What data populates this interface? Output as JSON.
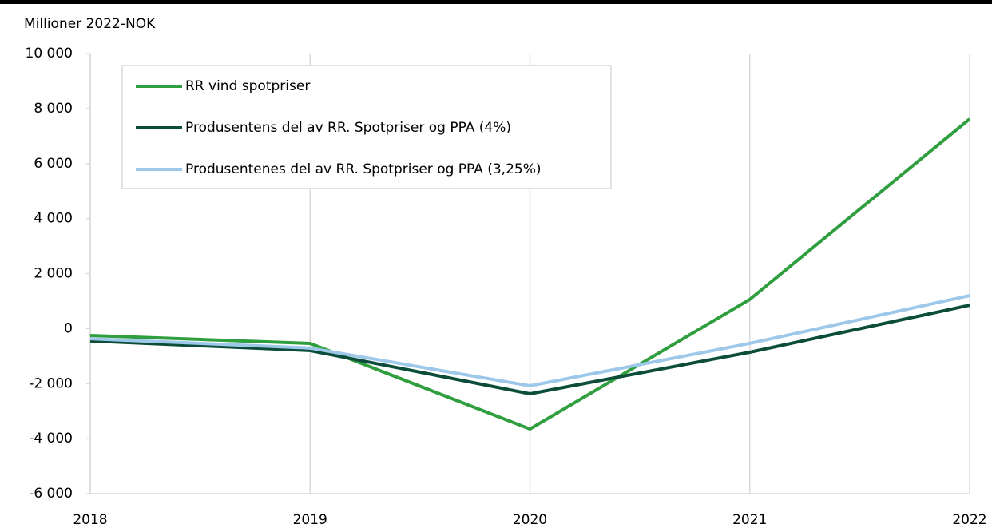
{
  "chart_data": {
    "type": "line",
    "y_axis_label": "Millioner 2022-NOK",
    "x": [
      2018,
      2019,
      2020,
      2021,
      2022
    ],
    "xlim": [
      2018,
      2022
    ],
    "xticks": [
      2018,
      2019,
      2020,
      2021,
      2022
    ],
    "ylim": [
      -6000,
      10000
    ],
    "yticks": [
      {
        "value": -6000,
        "label": "-6 000"
      },
      {
        "value": -4000,
        "label": "-4 000"
      },
      {
        "value": -2000,
        "label": "-2 000"
      },
      0,
      {
        "value": 2000,
        "label": "2 000"
      },
      {
        "value": 4000,
        "label": "4 000"
      },
      {
        "value": 6000,
        "label": "6 000"
      },
      {
        "value": 8000,
        "label": "8 000"
      },
      {
        "value": 10000,
        "label": "10 000"
      }
    ],
    "grid": "x",
    "legend": "upper left",
    "series": [
      {
        "name": "RR vind spotpriser",
        "color": "#2e9e3e",
        "values": [
          -250,
          -540,
          -3650,
          1060,
          7620
        ]
      },
      {
        "name": "Produsentens del av RR. Spotpriser og PPA (4%)",
        "color": "#0b4d3a",
        "values": [
          -450,
          -800,
          -2370,
          -860,
          850
        ]
      },
      {
        "name": "Produsentenes del av RR. Spotpriser og PPA (3,25%)",
        "color": "#9dc8ea",
        "values": [
          -370,
          -710,
          -2080,
          -540,
          1200
        ]
      }
    ]
  }
}
